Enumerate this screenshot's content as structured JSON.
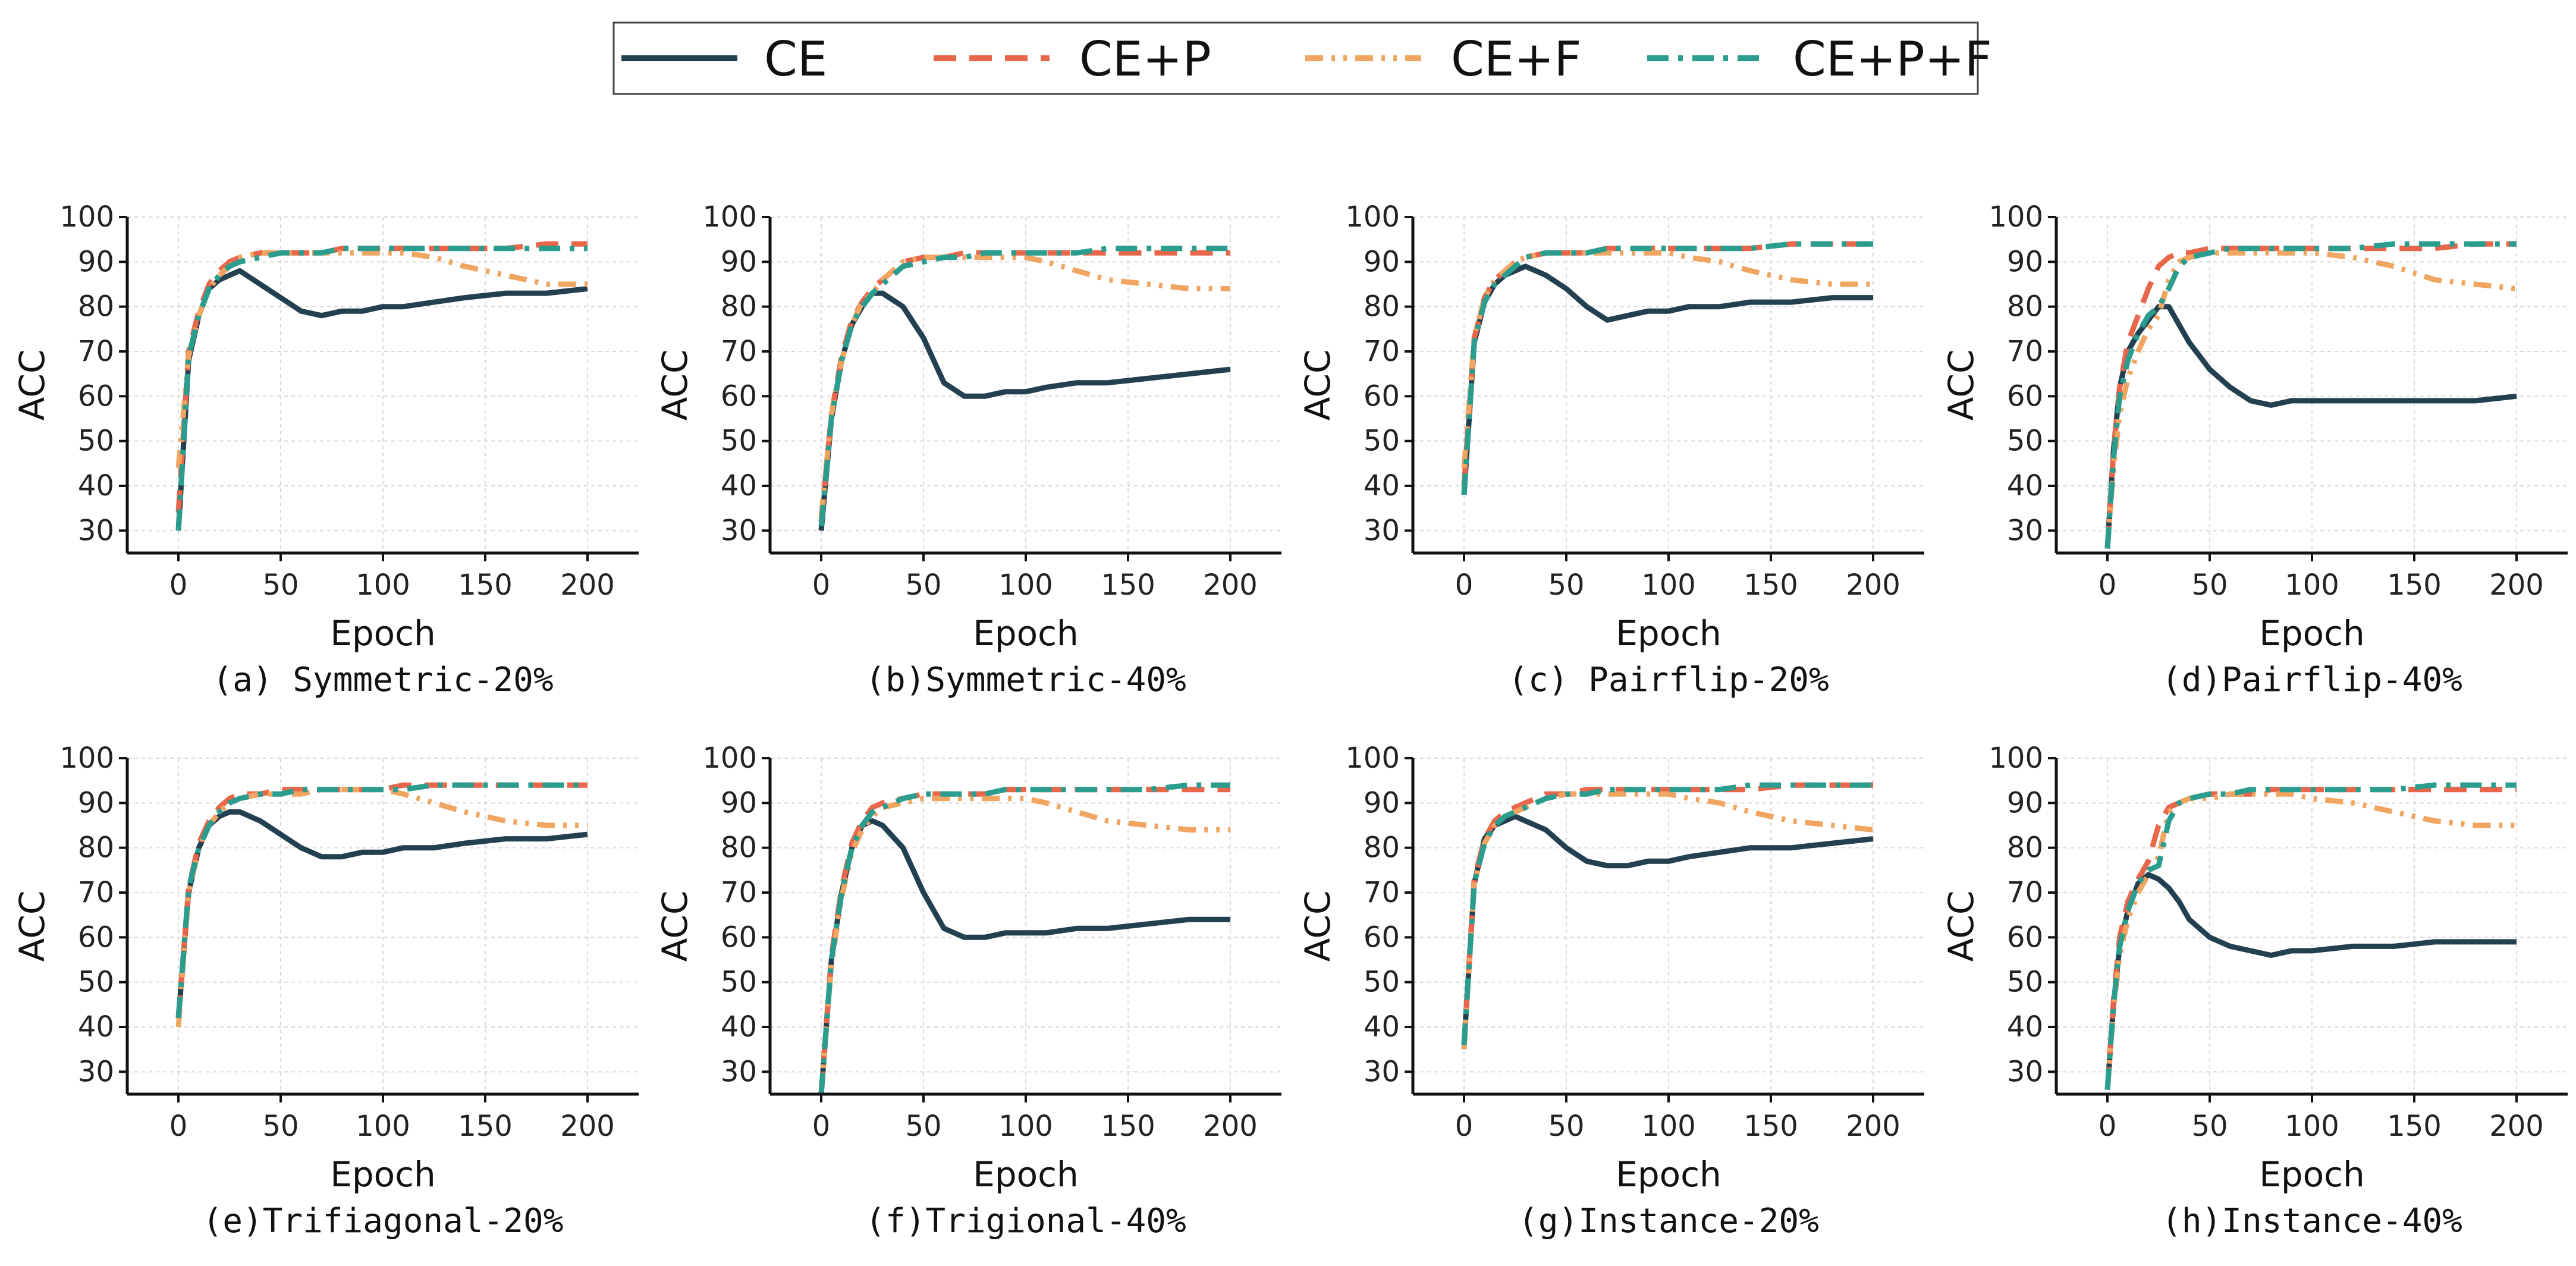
{
  "legend": {
    "items": [
      {
        "name": "CE",
        "color": "#22404f",
        "style": "solid"
      },
      {
        "name": "CE+P",
        "color": "#e8674a",
        "style": "dashed"
      },
      {
        "name": "CE+F",
        "color": "#f0a561",
        "style": "dashdotdot"
      },
      {
        "name": "CE+P+F",
        "color": "#2a9d8f",
        "style": "dashdot"
      }
    ]
  },
  "axes": {
    "xlabel": "Epoch",
    "ylabel": "ACC",
    "xticks": [
      0,
      50,
      100,
      150,
      200
    ],
    "yticks": [
      30,
      40,
      50,
      60,
      70,
      80,
      90,
      100
    ],
    "xlim": [
      -25,
      225
    ],
    "ylim": [
      25,
      100
    ]
  },
  "chart_data": [
    {
      "type": "line",
      "caption": "(a) Symmetric-20%",
      "x": [
        0,
        5,
        10,
        15,
        20,
        25,
        30,
        40,
        50,
        60,
        70,
        80,
        90,
        100,
        110,
        125,
        140,
        160,
        180,
        200
      ],
      "series": [
        {
          "name": "CE",
          "values": [
            30,
            68,
            78,
            84,
            86,
            87,
            88,
            85,
            82,
            79,
            78,
            79,
            79,
            80,
            80,
            81,
            82,
            83,
            83,
            84
          ]
        },
        {
          "name": "CE+P",
          "values": [
            34,
            70,
            79,
            85,
            88,
            90,
            91,
            92,
            92,
            92,
            92,
            93,
            93,
            93,
            93,
            93,
            93,
            93,
            94,
            94
          ]
        },
        {
          "name": "CE+F",
          "values": [
            44,
            69,
            78,
            84,
            87,
            89,
            91,
            92,
            92,
            92,
            92,
            92,
            92,
            92,
            92,
            91,
            89,
            87,
            85,
            85
          ]
        },
        {
          "name": "CE+P+F",
          "values": [
            30,
            69,
            78,
            84,
            87,
            89,
            90,
            91,
            92,
            92,
            92,
            93,
            93,
            93,
            93,
            93,
            93,
            93,
            93,
            93
          ]
        }
      ]
    },
    {
      "type": "line",
      "caption": "(b)Symmetric-40%",
      "x": [
        0,
        5,
        10,
        15,
        20,
        25,
        30,
        40,
        50,
        60,
        70,
        80,
        90,
        100,
        110,
        125,
        140,
        160,
        180,
        200
      ],
      "series": [
        {
          "name": "CE",
          "values": [
            30,
            55,
            68,
            76,
            80,
            83,
            83,
            80,
            73,
            63,
            60,
            60,
            61,
            61,
            62,
            63,
            63,
            64,
            65,
            66
          ]
        },
        {
          "name": "CE+P",
          "values": [
            32,
            56,
            69,
            77,
            81,
            84,
            86,
            90,
            91,
            91,
            92,
            92,
            92,
            92,
            92,
            92,
            92,
            92,
            92,
            92
          ]
        },
        {
          "name": "CE+F",
          "values": [
            33,
            56,
            68,
            76,
            81,
            83,
            86,
            90,
            91,
            91,
            91,
            91,
            91,
            91,
            90,
            88,
            86,
            85,
            84,
            84
          ]
        },
        {
          "name": "CE+P+F",
          "values": [
            31,
            55,
            68,
            76,
            80,
            83,
            85,
            89,
            90,
            91,
            91,
            92,
            92,
            92,
            92,
            92,
            93,
            93,
            93,
            93
          ]
        }
      ]
    },
    {
      "type": "line",
      "caption": "(c) Pairflip-20%",
      "x": [
        0,
        5,
        10,
        15,
        20,
        25,
        30,
        40,
        50,
        60,
        70,
        80,
        90,
        100,
        110,
        125,
        140,
        160,
        180,
        200
      ],
      "series": [
        {
          "name": "CE",
          "values": [
            38,
            72,
            81,
            85,
            87,
            88,
            89,
            87,
            84,
            80,
            77,
            78,
            79,
            79,
            80,
            80,
            81,
            81,
            82,
            82
          ]
        },
        {
          "name": "CE+P",
          "values": [
            40,
            73,
            82,
            86,
            88,
            90,
            91,
            92,
            92,
            92,
            93,
            93,
            93,
            93,
            93,
            93,
            93,
            94,
            94,
            94
          ]
        },
        {
          "name": "CE+F",
          "values": [
            44,
            73,
            82,
            86,
            88,
            90,
            91,
            92,
            92,
            92,
            92,
            92,
            92,
            92,
            91,
            90,
            88,
            86,
            85,
            85
          ]
        },
        {
          "name": "CE+P+F",
          "values": [
            38,
            72,
            81,
            85,
            87,
            89,
            91,
            92,
            92,
            92,
            93,
            93,
            93,
            93,
            93,
            93,
            93,
            94,
            94,
            94
          ]
        }
      ]
    },
    {
      "type": "line",
      "caption": "(d)Pairflip-40%",
      "x": [
        0,
        3,
        6,
        10,
        15,
        20,
        25,
        30,
        35,
        40,
        50,
        60,
        70,
        80,
        90,
        100,
        120,
        140,
        160,
        180,
        200
      ],
      "series": [
        {
          "name": "CE",
          "values": [
            26,
            48,
            62,
            70,
            74,
            77,
            80,
            80,
            76,
            72,
            66,
            62,
            59,
            58,
            59,
            59,
            59,
            59,
            59,
            59,
            60
          ]
        },
        {
          "name": "CE+P",
          "values": [
            26,
            48,
            62,
            72,
            78,
            84,
            89,
            91,
            92,
            92,
            93,
            93,
            93,
            93,
            93,
            93,
            93,
            93,
            93,
            94,
            94
          ]
        },
        {
          "name": "CE+F",
          "values": [
            26,
            44,
            56,
            64,
            70,
            75,
            78,
            86,
            90,
            91,
            92,
            92,
            92,
            92,
            92,
            92,
            91,
            89,
            86,
            85,
            84
          ]
        },
        {
          "name": "CE+P+F",
          "values": [
            26,
            46,
            60,
            68,
            74,
            78,
            80,
            84,
            89,
            91,
            92,
            93,
            93,
            93,
            93,
            93,
            93,
            94,
            94,
            94,
            94
          ]
        }
      ]
    },
    {
      "type": "line",
      "caption": "(e)Trifiagonal-20%",
      "x": [
        0,
        5,
        10,
        15,
        20,
        25,
        30,
        40,
        50,
        60,
        70,
        80,
        90,
        100,
        110,
        125,
        140,
        160,
        180,
        200
      ],
      "series": [
        {
          "name": "CE",
          "values": [
            42,
            70,
            80,
            85,
            87,
            88,
            88,
            86,
            83,
            80,
            78,
            78,
            79,
            79,
            80,
            80,
            81,
            82,
            82,
            83
          ]
        },
        {
          "name": "CE+P",
          "values": [
            42,
            71,
            81,
            86,
            89,
            91,
            92,
            92,
            93,
            93,
            93,
            93,
            93,
            93,
            94,
            94,
            94,
            94,
            94,
            94
          ]
        },
        {
          "name": "CE+F",
          "values": [
            40,
            70,
            80,
            85,
            88,
            90,
            91,
            92,
            92,
            92,
            93,
            93,
            93,
            93,
            92,
            90,
            88,
            86,
            85,
            85
          ]
        },
        {
          "name": "CE+P+F",
          "values": [
            42,
            71,
            80,
            85,
            88,
            90,
            91,
            92,
            92,
            93,
            93,
            93,
            93,
            93,
            93,
            94,
            94,
            94,
            94,
            94
          ]
        }
      ]
    },
    {
      "type": "line",
      "caption": "(f)Trigional-40%",
      "x": [
        0,
        5,
        10,
        15,
        20,
        25,
        30,
        40,
        50,
        60,
        70,
        80,
        90,
        100,
        110,
        125,
        140,
        160,
        180,
        200
      ],
      "series": [
        {
          "name": "CE",
          "values": [
            25,
            55,
            70,
            80,
            85,
            86,
            85,
            80,
            70,
            62,
            60,
            60,
            61,
            61,
            61,
            62,
            62,
            63,
            64,
            64
          ]
        },
        {
          "name": "CE+P",
          "values": [
            25,
            56,
            71,
            81,
            86,
            89,
            90,
            91,
            92,
            92,
            92,
            92,
            93,
            93,
            93,
            93,
            93,
            93,
            93,
            93
          ]
        },
        {
          "name": "CE+F",
          "values": [
            25,
            54,
            69,
            79,
            84,
            87,
            89,
            90,
            91,
            91,
            91,
            91,
            91,
            91,
            90,
            88,
            86,
            85,
            84,
            84
          ]
        },
        {
          "name": "CE+P+F",
          "values": [
            25,
            55,
            70,
            80,
            85,
            88,
            89,
            91,
            92,
            92,
            92,
            92,
            93,
            93,
            93,
            93,
            93,
            93,
            94,
            94
          ]
        }
      ]
    },
    {
      "type": "line",
      "caption": "(g)Instance-20%",
      "x": [
        0,
        5,
        10,
        15,
        20,
        25,
        30,
        40,
        50,
        60,
        70,
        80,
        90,
        100,
        110,
        125,
        140,
        160,
        180,
        200
      ],
      "series": [
        {
          "name": "CE",
          "values": [
            36,
            72,
            82,
            85,
            86,
            87,
            86,
            84,
            80,
            77,
            76,
            76,
            77,
            77,
            78,
            79,
            80,
            80,
            81,
            82
          ]
        },
        {
          "name": "CE+P",
          "values": [
            36,
            73,
            82,
            86,
            88,
            89,
            90,
            92,
            92,
            93,
            93,
            93,
            93,
            93,
            93,
            93,
            93,
            94,
            94,
            94
          ]
        },
        {
          "name": "CE+F",
          "values": [
            35,
            72,
            81,
            85,
            87,
            88,
            89,
            91,
            92,
            92,
            92,
            92,
            92,
            92,
            91,
            90,
            88,
            86,
            85,
            84
          ]
        },
        {
          "name": "CE+P+F",
          "values": [
            36,
            72,
            81,
            85,
            87,
            88,
            89,
            91,
            92,
            92,
            93,
            93,
            93,
            93,
            93,
            93,
            94,
            94,
            94,
            94
          ]
        }
      ]
    },
    {
      "type": "line",
      "caption": "(h)Instance-40%",
      "x": [
        0,
        3,
        6,
        10,
        15,
        20,
        25,
        30,
        35,
        40,
        50,
        60,
        70,
        80,
        90,
        100,
        120,
        140,
        160,
        180,
        200
      ],
      "series": [
        {
          "name": "CE",
          "values": [
            26,
            45,
            58,
            66,
            72,
            74,
            73,
            71,
            68,
            64,
            60,
            58,
            57,
            56,
            57,
            57,
            58,
            58,
            59,
            59,
            59
          ]
        },
        {
          "name": "CE+P",
          "values": [
            26,
            46,
            60,
            68,
            73,
            77,
            85,
            89,
            90,
            91,
            92,
            92,
            92,
            93,
            93,
            93,
            93,
            93,
            93,
            93,
            93
          ]
        },
        {
          "name": "CE+F",
          "values": [
            26,
            44,
            56,
            64,
            70,
            74,
            78,
            88,
            90,
            91,
            91,
            92,
            92,
            92,
            92,
            91,
            90,
            88,
            86,
            85,
            85
          ]
        },
        {
          "name": "CE+P+F",
          "values": [
            26,
            45,
            58,
            66,
            72,
            75,
            76,
            86,
            90,
            91,
            92,
            92,
            93,
            93,
            93,
            93,
            93,
            93,
            94,
            94,
            94
          ]
        }
      ]
    }
  ]
}
